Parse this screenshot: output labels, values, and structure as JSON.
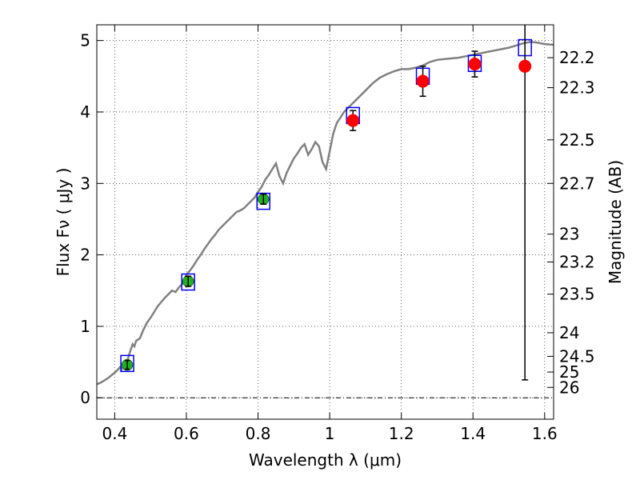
{
  "chart_data": {
    "type": "scatter",
    "xlabel": "Wavelength  λ (μm)",
    "ylabel_left": "Flux  Fν  ( μJy )",
    "ylabel_right": "Magnitude (AB)",
    "xlim": [
      0.35,
      1.625
    ],
    "ylim": [
      -0.3,
      5.22
    ],
    "x_ticks": [
      0.4,
      0.6,
      0.8,
      1.0,
      1.2,
      1.4,
      1.6
    ],
    "x_tick_labels": [
      "0.4",
      "0.6",
      "0.8",
      "1",
      "1.2",
      "1.4",
      "1.6"
    ],
    "y_ticks": [
      0,
      1,
      2,
      3,
      4,
      5
    ],
    "y_tick_labels": [
      "0",
      "1",
      "2",
      "3",
      "4",
      "5"
    ],
    "right_ticks": [
      {
        "label": "22.2",
        "flux": 4.76
      },
      {
        "label": "22.3",
        "flux": 4.34
      },
      {
        "label": "22.5",
        "flux": 3.61
      },
      {
        "label": "22.7",
        "flux": 3.0
      },
      {
        "label": "23",
        "flux": 2.29
      },
      {
        "label": "23.2",
        "flux": 1.9
      },
      {
        "label": "23.5",
        "flux": 1.45
      },
      {
        "label": "24",
        "flux": 0.91
      },
      {
        "label": "24.5",
        "flux": 0.58
      },
      {
        "label": "25",
        "flux": 0.36
      },
      {
        "label": "26",
        "flux": 0.145
      }
    ],
    "grid": true,
    "zero_line": true,
    "colors": {
      "model": "#808080",
      "model_box": "#0000ff",
      "optical": "#22b022",
      "nir": "#ff0000",
      "errorbar": "#000000"
    },
    "model_spectrum": {
      "x": [
        0.35,
        0.36,
        0.37,
        0.38,
        0.39,
        0.4,
        0.41,
        0.415,
        0.42,
        0.425,
        0.43,
        0.44,
        0.45,
        0.455,
        0.46,
        0.47,
        0.48,
        0.49,
        0.5,
        0.51,
        0.52,
        0.53,
        0.54,
        0.55,
        0.56,
        0.57,
        0.58,
        0.59,
        0.6,
        0.61,
        0.62,
        0.63,
        0.64,
        0.65,
        0.66,
        0.67,
        0.68,
        0.69,
        0.7,
        0.71,
        0.72,
        0.73,
        0.74,
        0.75,
        0.76,
        0.77,
        0.78,
        0.79,
        0.8,
        0.81,
        0.82,
        0.83,
        0.84,
        0.85,
        0.86,
        0.87,
        0.88,
        0.89,
        0.9,
        0.91,
        0.92,
        0.93,
        0.94,
        0.95,
        0.96,
        0.97,
        0.98,
        0.99,
        1.0,
        1.01,
        1.02,
        1.03,
        1.04,
        1.05,
        1.06,
        1.07,
        1.08,
        1.1,
        1.12,
        1.14,
        1.16,
        1.18,
        1.2,
        1.22,
        1.24,
        1.26,
        1.28,
        1.3,
        1.32,
        1.34,
        1.36,
        1.38,
        1.4,
        1.42,
        1.44,
        1.46,
        1.48,
        1.5,
        1.52,
        1.54,
        1.56,
        1.58,
        1.6,
        1.625
      ],
      "y": [
        0.19,
        0.21,
        0.24,
        0.27,
        0.31,
        0.35,
        0.4,
        0.43,
        0.4,
        0.47,
        0.42,
        0.6,
        0.75,
        0.72,
        0.8,
        0.83,
        0.95,
        1.05,
        1.12,
        1.2,
        1.28,
        1.34,
        1.4,
        1.45,
        1.5,
        1.48,
        1.55,
        1.6,
        1.72,
        1.78,
        1.85,
        1.93,
        2.0,
        2.08,
        2.15,
        2.22,
        2.28,
        2.35,
        2.4,
        2.45,
        2.5,
        2.55,
        2.6,
        2.62,
        2.65,
        2.7,
        2.75,
        2.8,
        2.88,
        2.95,
        3.05,
        3.12,
        3.2,
        3.28,
        3.1,
        3.0,
        3.15,
        3.25,
        3.35,
        3.42,
        3.5,
        3.55,
        3.4,
        3.48,
        3.58,
        3.52,
        3.3,
        3.2,
        3.45,
        3.7,
        3.85,
        3.92,
        4.0,
        4.05,
        4.1,
        4.15,
        4.2,
        4.3,
        4.4,
        4.48,
        4.53,
        4.57,
        4.6,
        4.6,
        4.62,
        4.65,
        4.7,
        4.73,
        4.74,
        4.75,
        4.76,
        4.78,
        4.8,
        4.82,
        4.84,
        4.86,
        4.88,
        4.9,
        4.93,
        4.96,
        4.98,
        4.97,
        4.95,
        4.94
      ]
    },
    "model_boxes": [
      {
        "x": 0.435,
        "y": 0.48
      },
      {
        "x": 0.605,
        "y": 1.62
      },
      {
        "x": 0.815,
        "y": 2.75
      },
      {
        "x": 1.065,
        "y": 3.95
      },
      {
        "x": 1.26,
        "y": 4.5
      },
      {
        "x": 1.405,
        "y": 4.68
      },
      {
        "x": 1.545,
        "y": 4.9
      }
    ],
    "optical_points": [
      {
        "x": 0.435,
        "y": 0.46,
        "err": 0.06
      },
      {
        "x": 0.605,
        "y": 1.63,
        "err": 0.07
      },
      {
        "x": 0.815,
        "y": 2.78,
        "err": 0.07
      }
    ],
    "nir_points": [
      {
        "x": 1.065,
        "y": 3.88,
        "err": 0.14
      },
      {
        "x": 1.26,
        "y": 4.43,
        "err": 0.21
      },
      {
        "x": 1.405,
        "y": 4.67,
        "err": 0.18
      },
      {
        "x": 1.545,
        "y": 4.64,
        "err_low": 4.39,
        "err_high": 0.0
      }
    ]
  }
}
